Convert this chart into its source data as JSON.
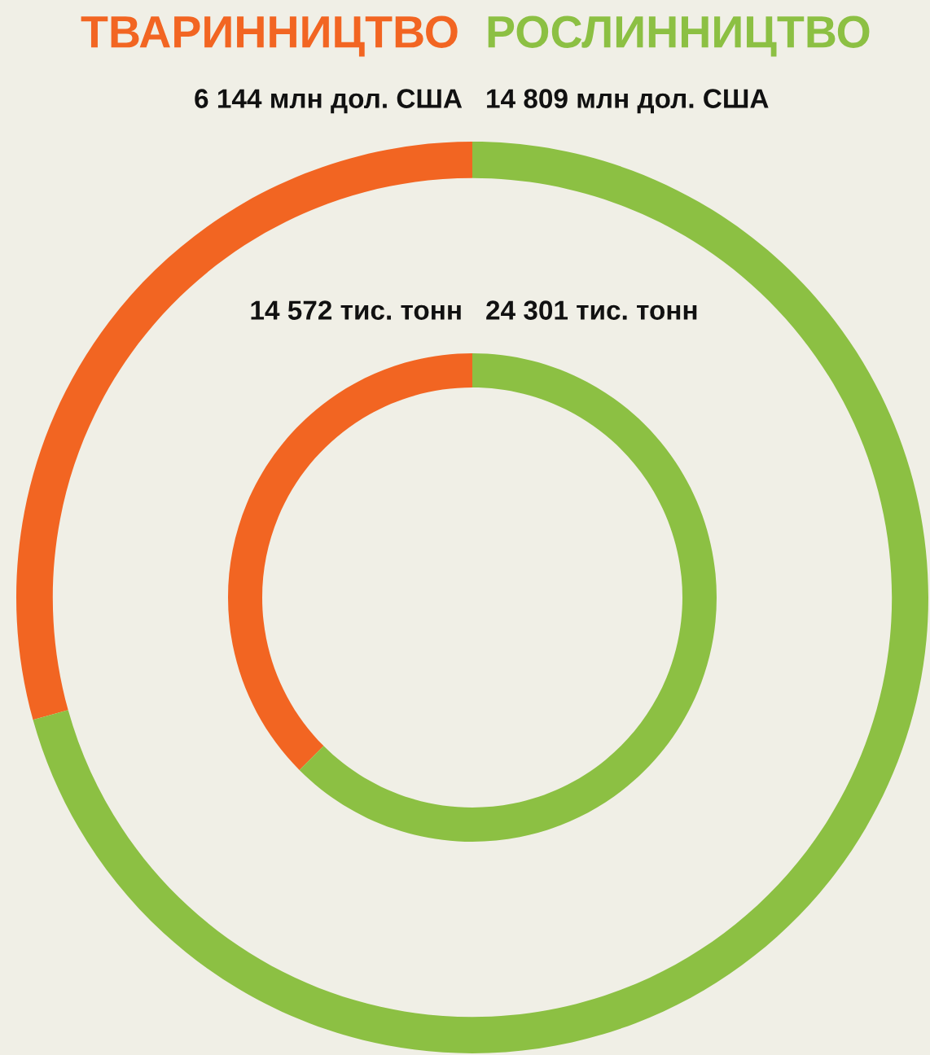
{
  "chart_data": {
    "type": "donut",
    "categories": [
      "ТВАРИННИЦТВО",
      "РОСЛИННИЦТВО"
    ],
    "colors": [
      "#f26522",
      "#8cc043"
    ],
    "series": [
      {
        "values": [
          6144,
          14809
        ],
        "value_labels": [
          "6 144 млн дол. США",
          "14 809 млн дол. США"
        ]
      },
      {
        "values": [
          14572,
          24301
        ],
        "value_labels": [
          "14 572 тис. тонн",
          "24 301 тис. тонн"
        ]
      }
    ]
  }
}
